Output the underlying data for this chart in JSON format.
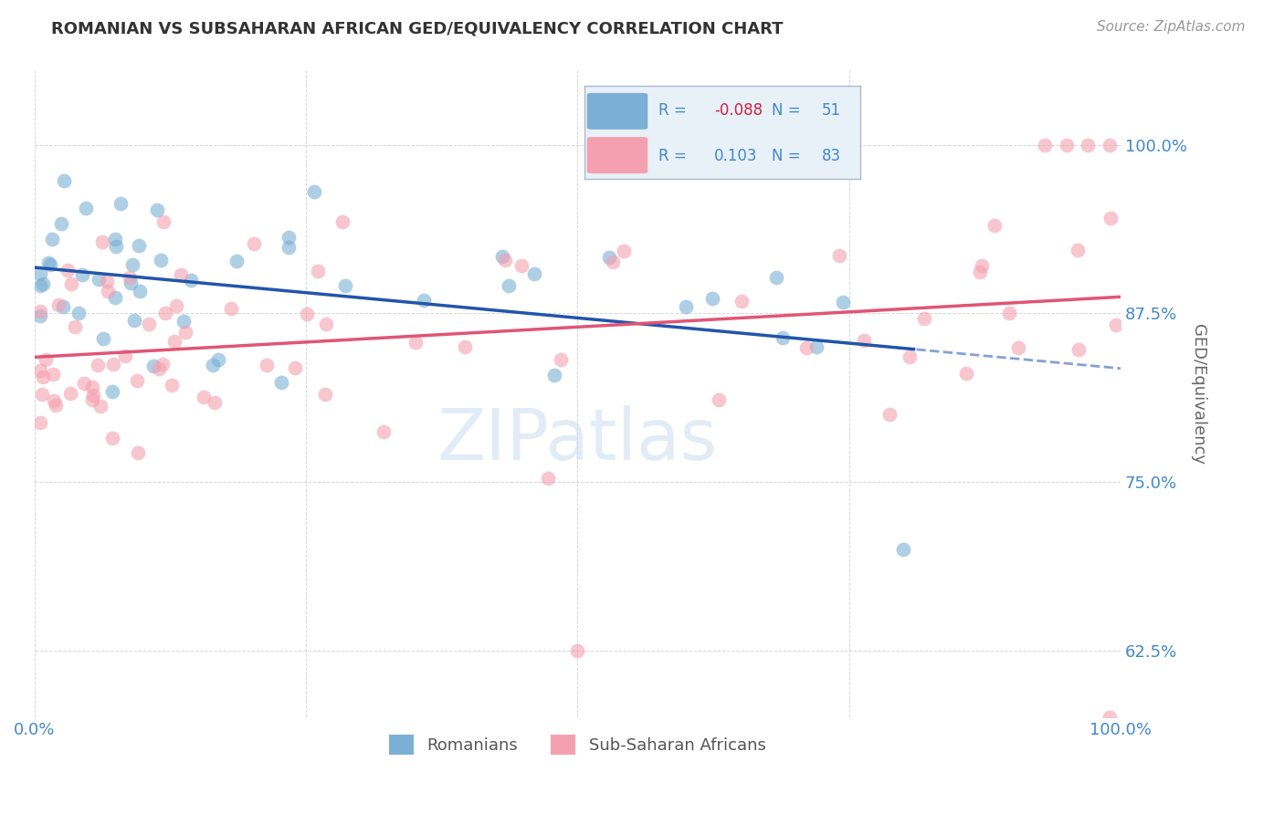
{
  "title": "ROMANIAN VS SUBSAHARAN AFRICAN GED/EQUIVALENCY CORRELATION CHART",
  "source": "Source: ZipAtlas.com",
  "ylabel": "GED/Equivalency",
  "ytick_labels": [
    "62.5%",
    "75.0%",
    "87.5%",
    "100.0%"
  ],
  "ytick_values": [
    0.625,
    0.75,
    0.875,
    1.0
  ],
  "r_blue": -0.088,
  "n_blue": 51,
  "r_pink": 0.103,
  "n_pink": 83,
  "blue_color": "#7bafd4",
  "pink_color": "#f4a0b0",
  "blue_line_color": "#2255aa",
  "pink_line_color": "#e05575",
  "watermark": "ZIPatlas",
  "legend_box_color": "#e8f0f8",
  "legend_box_edge": "#aabbcc"
}
